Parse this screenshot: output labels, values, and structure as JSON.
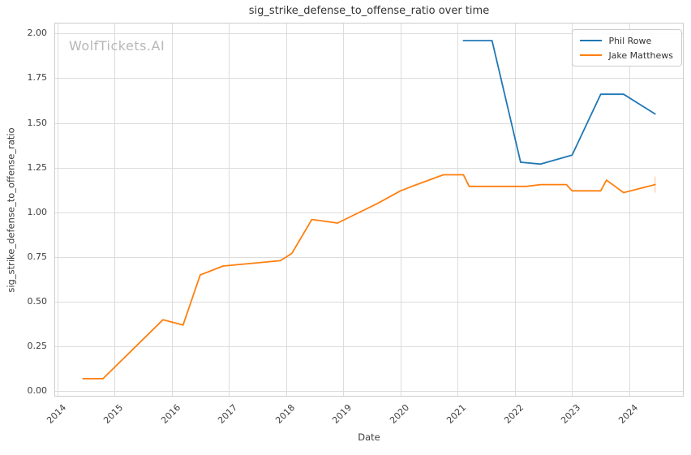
{
  "watermark": "WolfTickets.AI",
  "chart_data": {
    "type": "line",
    "title": "sig_strike_defense_to_offense_ratio over time",
    "xlabel": "Date",
    "ylabel": "sig_strike_defense_to_offense_ratio",
    "xlim": [
      2013.95,
      2024.95
    ],
    "ylim": [
      -0.03,
      2.06
    ],
    "x_ticks": [
      2014,
      2015,
      2016,
      2017,
      2018,
      2019,
      2020,
      2021,
      2022,
      2023,
      2024
    ],
    "y_ticks": [
      0,
      0.25,
      0.5,
      0.75,
      1.0,
      1.25,
      1.5,
      1.75,
      2.0
    ],
    "grid": true,
    "legend_position": "upper-right",
    "colors": {
      "grid": "#dcdcdc",
      "spine": "#cccccc",
      "text": "#383838",
      "watermark": "#b7b7b7",
      "phil_rowe": "#1f77b4",
      "jake_matthews": "#ff7f0e"
    },
    "series": [
      {
        "name": "Phil Rowe",
        "color": "#1f77b4",
        "x": [
          2021.1,
          2021.6,
          2022.1,
          2022.45,
          2023.0,
          2023.5,
          2023.9,
          2024.45
        ],
        "y": [
          1.96,
          1.96,
          1.28,
          1.27,
          1.32,
          1.66,
          1.66,
          1.55
        ]
      },
      {
        "name": "Jake Matthews",
        "color": "#ff7f0e",
        "x": [
          2014.45,
          2014.8,
          2015.85,
          2016.2,
          2016.5,
          2016.9,
          2017.9,
          2018.1,
          2018.45,
          2018.9,
          2019.6,
          2020.0,
          2020.2,
          2020.75,
          2021.1,
          2021.2,
          2022.2,
          2022.45,
          2022.9,
          2023.0,
          2023.5,
          2023.6,
          2023.9,
          2024.45
        ],
        "y": [
          0.07,
          0.07,
          0.4,
          0.37,
          0.65,
          0.7,
          0.73,
          0.77,
          0.96,
          0.94,
          1.05,
          1.12,
          1.145,
          1.21,
          1.21,
          1.145,
          1.145,
          1.155,
          1.155,
          1.12,
          1.12,
          1.18,
          1.11,
          1.155
        ],
        "error_bar": {
          "x": 2024.45,
          "y_low": 1.11,
          "y_high": 1.2
        }
      }
    ]
  }
}
